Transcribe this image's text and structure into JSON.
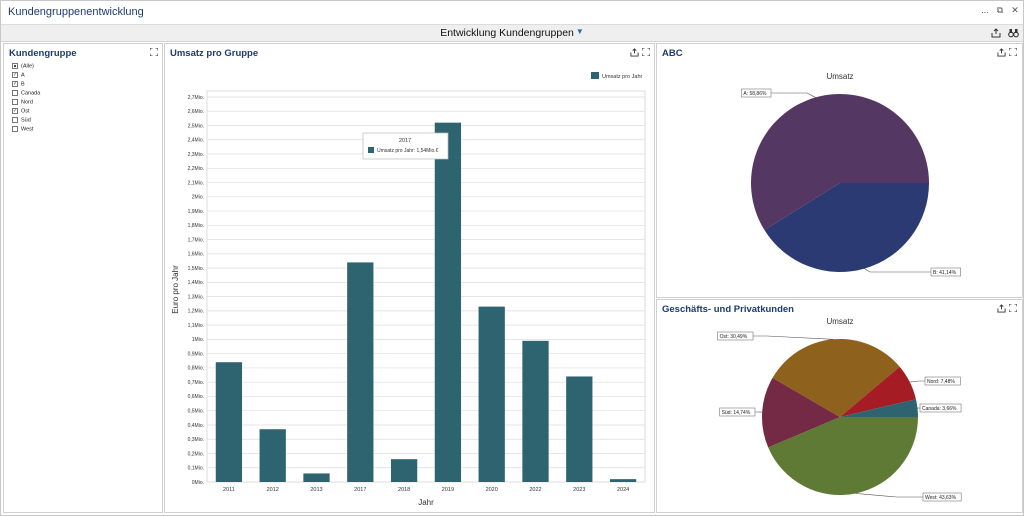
{
  "window": {
    "title": "Kundengruppenentwicklung",
    "controls": [
      "...",
      "⧉",
      "✕"
    ]
  },
  "dashboard": {
    "title": "Entwicklung Kundengruppen"
  },
  "filter_panel": {
    "title": "Kundengruppe",
    "items": [
      {
        "label": "(Alle)",
        "state": "partial"
      },
      {
        "label": "A",
        "state": "checked"
      },
      {
        "label": "B",
        "state": "checked"
      },
      {
        "label": "Canada",
        "state": "unchecked"
      },
      {
        "label": "Nord",
        "state": "unchecked"
      },
      {
        "label": "Ost",
        "state": "checked"
      },
      {
        "label": "Süd",
        "state": "unchecked"
      },
      {
        "label": "West",
        "state": "unchecked"
      }
    ]
  },
  "bar_panel": {
    "title": "Umsatz pro Gruppe",
    "tooltip": {
      "title": "2017",
      "text": "Umsatz pro Jahr: 1,54Mio.€"
    }
  },
  "abc_panel": {
    "title": "ABC"
  },
  "gp_panel": {
    "title": "Geschäfts- und Privatkunden"
  },
  "chart_data": [
    {
      "type": "bar",
      "categories": [
        "2011",
        "2012",
        "2013",
        "2017",
        "2018",
        "2019",
        "2020",
        "2022",
        "2023",
        "2024"
      ],
      "series": [
        {
          "name": "Umsatz pro Jahr",
          "values": [
            0.84,
            0.37,
            0.06,
            1.54,
            0.16,
            2.52,
            1.23,
            0.99,
            0.74,
            0.02
          ],
          "color": "#2e6470"
        }
      ],
      "xlabel": "Jahr",
      "ylabel": "Euro pro Jahr",
      "ylim": [
        0,
        2.7
      ],
      "yticks": [
        "0Mio.",
        "0,1Mio.",
        "0,2Mio.",
        "0,3Mio.",
        "0,4Mio.",
        "0,5Mio.",
        "0,6Mio.",
        "0,7Mio.",
        "0,8Mio.",
        "0,9Mio.",
        "1Mio.",
        "1,1Mio.",
        "1,2Mio.",
        "1,3Mio.",
        "1,4Mio.",
        "1,5Mio.",
        "1,6Mio.",
        "1,7Mio.",
        "1,8Mio.",
        "1,9Mio.",
        "2Mio.",
        "2,1Mio.",
        "2,2Mio.",
        "2,3Mio.",
        "2,4Mio.",
        "2,5Mio.",
        "2,6Mio.",
        "2,7Mio."
      ],
      "grid": true,
      "legend": "top-right"
    },
    {
      "type": "pie",
      "title": "Umsatz",
      "slices": [
        {
          "name": "A",
          "value": 58.86,
          "label": "A: 58,86%",
          "color": "#553764"
        },
        {
          "name": "B",
          "value": 41.14,
          "label": "B: 41,14%",
          "color": "#2c3a73"
        }
      ]
    },
    {
      "type": "pie",
      "title": "Umsatz",
      "slices": [
        {
          "name": "West",
          "value": 43.63,
          "label": "West: 43,63%",
          "color": "#5e7a34"
        },
        {
          "name": "Süd",
          "value": 14.74,
          "label": "Süd: 14,74%",
          "color": "#742a44"
        },
        {
          "name": "Ost",
          "value": 30.49,
          "label": "Ost: 30,49%",
          "color": "#8e621c"
        },
        {
          "name": "Nord",
          "value": 7.48,
          "label": "Nord: 7,48%",
          "color": "#a51c24"
        },
        {
          "name": "Canada",
          "value": 3.66,
          "label": "Canada: 3,66%",
          "color": "#2e6470"
        }
      ]
    }
  ]
}
